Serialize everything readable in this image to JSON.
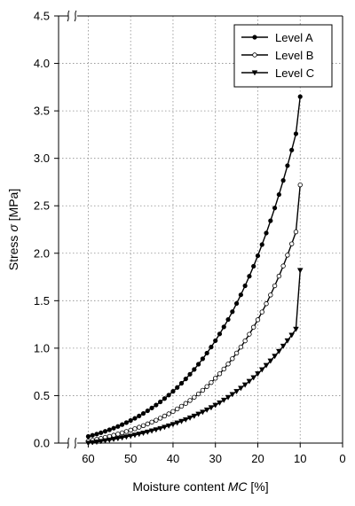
{
  "chart_data": {
    "type": "line",
    "title": "",
    "xlabel": {
      "prefix": "Moisture content ",
      "symbol": "MC",
      "suffix": " [%]"
    },
    "ylabel": {
      "prefix": "Stress ",
      "symbol": "σ",
      "suffix": " [MPa]"
    },
    "xlim": [
      67,
      0
    ],
    "ylim": [
      0,
      4.5
    ],
    "x_reversed": true,
    "x_ticks": [
      60,
      50,
      40,
      30,
      20,
      10,
      0
    ],
    "y_ticks": [
      0.0,
      0.5,
      1.0,
      1.5,
      2.0,
      2.5,
      3.0,
      3.5,
      4.0,
      4.5
    ],
    "y_tick_labels": [
      "0.0",
      "0.5",
      "1.0",
      "1.5",
      "2.0",
      "2.5",
      "3.0",
      "3.5",
      "4.0",
      "4.5"
    ],
    "axis_break": true,
    "grid": true,
    "legend_position": "top-right",
    "x": [
      60,
      59,
      58,
      57,
      56,
      55,
      54,
      53,
      52,
      51,
      50,
      49,
      48,
      47,
      46,
      45,
      44,
      43,
      42,
      41,
      40,
      39,
      38,
      37,
      36,
      35,
      34,
      33,
      32,
      31,
      30,
      29,
      28,
      27,
      26,
      25,
      24,
      23,
      22,
      21,
      20,
      19,
      18,
      17,
      16,
      15,
      14,
      13,
      12,
      11,
      10
    ],
    "series": [
      {
        "name": "Level A",
        "marker": "filled-circle",
        "color": "#000000",
        "values": [
          0.07,
          0.082,
          0.095,
          0.109,
          0.124,
          0.14,
          0.157,
          0.175,
          0.195,
          0.216,
          0.238,
          0.261,
          0.286,
          0.312,
          0.34,
          0.37,
          0.401,
          0.434,
          0.469,
          0.506,
          0.545,
          0.586,
          0.63,
          0.676,
          0.725,
          0.776,
          0.831,
          0.888,
          0.948,
          1.012,
          1.079,
          1.15,
          1.224,
          1.302,
          1.384,
          1.471,
          1.562,
          1.657,
          1.758,
          1.863,
          1.974,
          2.091,
          2.213,
          2.342,
          2.477,
          2.618,
          2.767,
          2.923,
          3.087,
          3.259,
          3.65
        ]
      },
      {
        "name": "Level B",
        "marker": "open-circle",
        "color": "#000000",
        "values": [
          0.02,
          0.029,
          0.039,
          0.049,
          0.06,
          0.071,
          0.083,
          0.095,
          0.108,
          0.122,
          0.136,
          0.151,
          0.167,
          0.184,
          0.202,
          0.221,
          0.241,
          0.262,
          0.285,
          0.308,
          0.333,
          0.36,
          0.388,
          0.418,
          0.449,
          0.483,
          0.518,
          0.556,
          0.596,
          0.638,
          0.683,
          0.73,
          0.78,
          0.833,
          0.889,
          0.948,
          1.011,
          1.077,
          1.147,
          1.221,
          1.299,
          1.381,
          1.468,
          1.56,
          1.657,
          1.759,
          1.866,
          1.98,
          2.099,
          2.225,
          2.72
        ]
      },
      {
        "name": "Level C",
        "marker": "filled-triangle-down",
        "color": "#000000",
        "values": [
          0.0,
          0.006,
          0.012,
          0.019,
          0.026,
          0.033,
          0.041,
          0.049,
          0.057,
          0.066,
          0.075,
          0.085,
          0.095,
          0.106,
          0.117,
          0.129,
          0.141,
          0.154,
          0.168,
          0.182,
          0.197,
          0.213,
          0.23,
          0.247,
          0.266,
          0.285,
          0.306,
          0.327,
          0.35,
          0.374,
          0.399,
          0.425,
          0.453,
          0.482,
          0.513,
          0.545,
          0.579,
          0.614,
          0.651,
          0.69,
          0.731,
          0.774,
          0.819,
          0.866,
          0.916,
          0.967,
          1.022,
          1.079,
          1.138,
          1.201,
          1.82
        ]
      }
    ]
  }
}
